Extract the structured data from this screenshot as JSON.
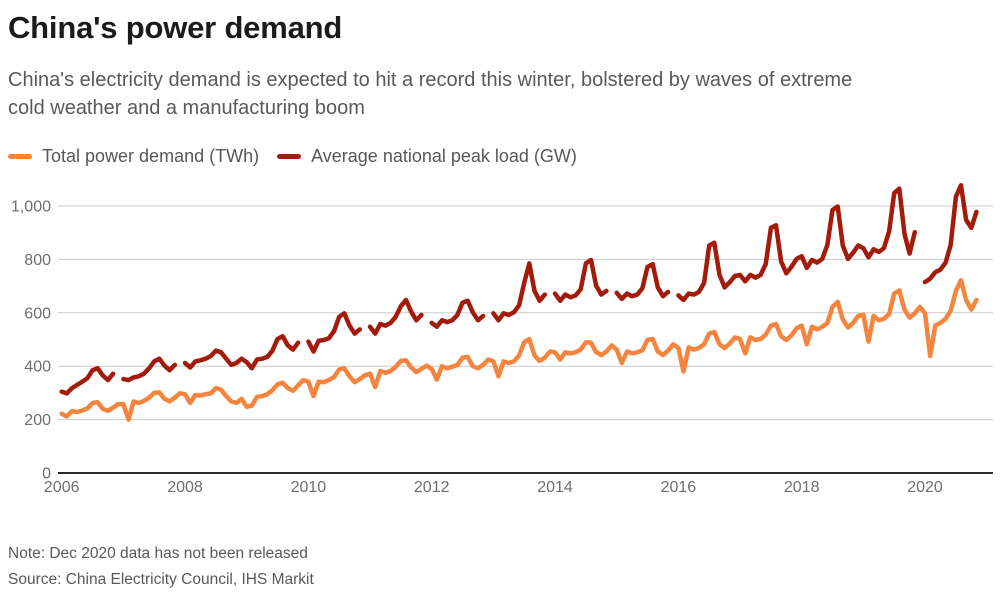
{
  "header": {
    "title": "China's power demand",
    "subtitle_lines": [
      "China's electricity demand is expected to hit a record this winter, bolstered by waves of extreme",
      "cold weather and a manufacturing boom"
    ]
  },
  "chart_data": {
    "type": "line",
    "x_frequency": "monthly",
    "x_start": "2006-01",
    "x_end": "2020-11",
    "x_ticks": [
      2006,
      2008,
      2010,
      2012,
      2014,
      2016,
      2018,
      2020
    ],
    "y_ticks": [
      {
        "value": 0,
        "label": "0"
      },
      {
        "value": 200,
        "label": "200"
      },
      {
        "value": 400,
        "label": "400"
      },
      {
        "value": 600,
        "label": "600"
      },
      {
        "value": 800,
        "label": "800"
      },
      {
        "value": 1000,
        "label": "1,000"
      }
    ],
    "ylim": [
      0,
      1100
    ],
    "grid": "horizontal",
    "legend_position": "top-left",
    "colors": {
      "grid": "#cccccc",
      "axis": "#2b2b2b",
      "tick_text": "#6e6e6e"
    },
    "note": "Note: Dec 2020 data has not been released",
    "source": "Source: China Electricity Council, IHS Markit",
    "series": [
      {
        "name": "Total power demand (TWh)",
        "color": "#f5843e",
        "values": [
          222,
          212,
          232,
          228,
          234,
          242,
          262,
          265,
          240,
          233,
          245,
          258,
          258,
          200,
          268,
          262,
          270,
          282,
          300,
          302,
          278,
          268,
          282,
          298,
          295,
          262,
          292,
          290,
          295,
          298,
          318,
          312,
          288,
          268,
          262,
          278,
          248,
          252,
          285,
          288,
          295,
          310,
          332,
          338,
          318,
          308,
          328,
          348,
          342,
          288,
          342,
          340,
          348,
          360,
          388,
          392,
          362,
          340,
          352,
          366,
          372,
          322,
          382,
          375,
          382,
          398,
          420,
          422,
          395,
          378,
          390,
          402,
          390,
          350,
          400,
          392,
          398,
          405,
          432,
          435,
          400,
          392,
          405,
          425,
          418,
          362,
          418,
          412,
          418,
          440,
          490,
          502,
          440,
          420,
          432,
          455,
          452,
          425,
          452,
          448,
          452,
          462,
          490,
          488,
          452,
          442,
          455,
          478,
          462,
          412,
          455,
          448,
          452,
          460,
          498,
          502,
          455,
          442,
          458,
          482,
          468,
          380,
          470,
          462,
          468,
          482,
          522,
          528,
          482,
          468,
          485,
          508,
          502,
          448,
          508,
          498,
          502,
          518,
          552,
          558,
          512,
          498,
          515,
          542,
          552,
          482,
          548,
          538,
          548,
          562,
          622,
          641,
          575,
          545,
          562,
          588,
          592,
          492,
          588,
          572,
          578,
          595,
          672,
          684,
          612,
          582,
          598,
          622,
          598,
          438,
          552,
          562,
          578,
          608,
          682,
          722,
          648,
          612,
          648
        ]
      },
      {
        "name": "Average national peak load (GW)",
        "color": "#a31b0b",
        "values": [
          305,
          298,
          318,
          330,
          342,
          355,
          385,
          392,
          365,
          348,
          372,
          null,
          352,
          348,
          358,
          362,
          372,
          392,
          418,
          428,
          402,
          385,
          405,
          null,
          412,
          395,
          418,
          422,
          428,
          438,
          458,
          452,
          428,
          405,
          412,
          428,
          415,
          392,
          425,
          428,
          435,
          458,
          502,
          512,
          478,
          462,
          488,
          null,
          492,
          455,
          495,
          498,
          505,
          532,
          585,
          598,
          552,
          522,
          538,
          null,
          548,
          522,
          558,
          552,
          562,
          585,
          625,
          648,
          605,
          572,
          592,
          null,
          562,
          548,
          572,
          565,
          572,
          592,
          638,
          645,
          602,
          572,
          588,
          null,
          598,
          572,
          598,
          592,
          602,
          628,
          712,
          785,
          682,
          645,
          668,
          null,
          672,
          645,
          668,
          658,
          665,
          688,
          785,
          798,
          702,
          668,
          682,
          null,
          675,
          652,
          672,
          662,
          668,
          692,
          772,
          782,
          695,
          662,
          678,
          null,
          665,
          648,
          672,
          668,
          678,
          712,
          852,
          862,
          742,
          695,
          715,
          738,
          742,
          718,
          742,
          732,
          742,
          782,
          918,
          928,
          792,
          748,
          772,
          802,
          812,
          768,
          798,
          788,
          802,
          855,
          985,
          998,
          852,
          802,
          825,
          852,
          842,
          808,
          838,
          828,
          842,
          905,
          1048,
          1065,
          895,
          822,
          902,
          null,
          715,
          728,
          752,
          762,
          788,
          855,
          1035,
          1078,
          948,
          918,
          978
        ]
      }
    ]
  }
}
